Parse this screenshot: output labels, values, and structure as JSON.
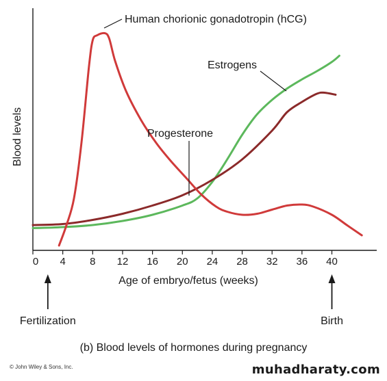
{
  "chart_data": {
    "type": "line",
    "xlabel": "Age of embryo/fetus (weeks)",
    "ylabel": "Blood levels",
    "xlim": [
      0,
      46
    ],
    "ylim": [
      0,
      100
    ],
    "x_ticks": [
      0,
      4,
      8,
      12,
      16,
      20,
      24,
      28,
      32,
      36,
      40
    ],
    "grid": false,
    "series": [
      {
        "name": "Human chorionic gonadotropin (hCG)",
        "color": "#d03a3a",
        "points": [
          [
            3.5,
            -5
          ],
          [
            4.5,
            5
          ],
          [
            5.5,
            18
          ],
          [
            6.5,
            45
          ],
          [
            7.5,
            82
          ],
          [
            8,
            95
          ],
          [
            8.6,
            97.5
          ],
          [
            9.6,
            98.5
          ],
          [
            10.2,
            96
          ],
          [
            11,
            85
          ],
          [
            12.5,
            70
          ],
          [
            14.5,
            56
          ],
          [
            16.5,
            45
          ],
          [
            18.5,
            36
          ],
          [
            20.5,
            28
          ],
          [
            22.5,
            20
          ],
          [
            24.5,
            14
          ],
          [
            26,
            11.5
          ],
          [
            28,
            10
          ],
          [
            30,
            10.5
          ],
          [
            32,
            12.5
          ],
          [
            34,
            14.5
          ],
          [
            36,
            15
          ],
          [
            37.5,
            14
          ],
          [
            40,
            10
          ],
          [
            42,
            5
          ],
          [
            44,
            0
          ]
        ]
      },
      {
        "name": "Progesterone",
        "color": "#8b2a2a",
        "points": [
          [
            0,
            5
          ],
          [
            4,
            5.5
          ],
          [
            8,
            7.5
          ],
          [
            12,
            10.5
          ],
          [
            16,
            14.5
          ],
          [
            20,
            19.5
          ],
          [
            24,
            27
          ],
          [
            28,
            37
          ],
          [
            32,
            51
          ],
          [
            34,
            60
          ],
          [
            36,
            65
          ],
          [
            38,
            69
          ],
          [
            39,
            69.5
          ],
          [
            40.5,
            68.5
          ]
        ]
      },
      {
        "name": "Estrogens",
        "color": "#5cb85c",
        "points": [
          [
            0,
            3.5
          ],
          [
            4,
            4
          ],
          [
            8,
            5
          ],
          [
            12,
            7
          ],
          [
            16,
            10
          ],
          [
            20,
            14.5
          ],
          [
            22,
            18
          ],
          [
            24,
            26
          ],
          [
            26,
            37
          ],
          [
            28,
            49
          ],
          [
            30,
            59
          ],
          [
            32,
            66
          ],
          [
            34,
            71.5
          ],
          [
            36,
            76
          ],
          [
            38,
            80
          ],
          [
            40,
            84.5
          ],
          [
            41,
            87.5
          ]
        ]
      }
    ],
    "annotations": [
      {
        "text": "Human chorionic gonadotropin (hCG)"
      },
      {
        "text": "Estrogens"
      },
      {
        "text": "Progesterone"
      },
      {
        "text": "Fertilization",
        "x": 2
      },
      {
        "text": "Birth",
        "x": 40
      }
    ]
  },
  "caption": "(b) Blood levels of hormones during pregnancy",
  "copyright": "© John Wiley & Sons, Inc.",
  "watermark": "muhadharaty.com"
}
